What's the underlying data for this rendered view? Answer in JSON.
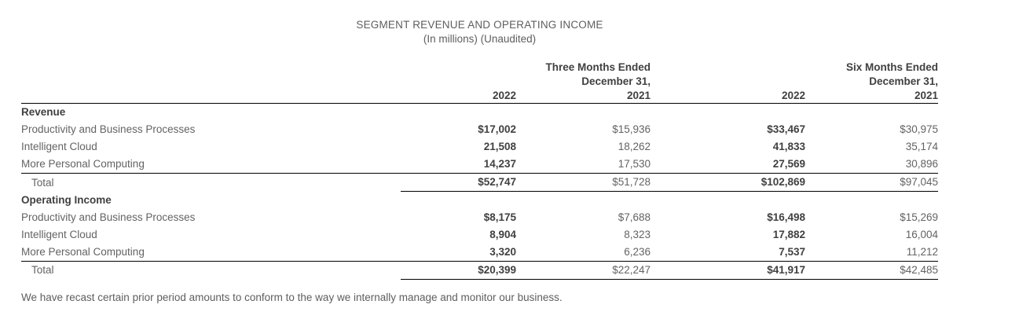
{
  "title": "SEGMENT REVENUE AND OPERATING INCOME",
  "subtitle": "(In millions) (Unaudited)",
  "table": {
    "groups": [
      {
        "line1": "Three Months Ended",
        "line2": "December 31,"
      },
      {
        "line1": "Six Months Ended",
        "line2": "December 31,"
      }
    ],
    "years": [
      "2022",
      "2021",
      "2022",
      "2021"
    ],
    "sections": [
      {
        "heading": "Revenue",
        "rows": [
          {
            "label": "Productivity and Business Processes",
            "values": [
              "$17,002",
              "$15,936",
              "$33,467",
              "$30,975"
            ]
          },
          {
            "label": "Intelligent Cloud",
            "values": [
              "21,508",
              "18,262",
              "41,833",
              "35,174"
            ]
          },
          {
            "label": "More Personal Computing",
            "values": [
              "14,237",
              "17,530",
              "27,569",
              "30,896"
            ]
          }
        ],
        "total": {
          "label": "Total",
          "values": [
            "$52,747",
            "$51,728",
            "$102,869",
            "$97,045"
          ]
        }
      },
      {
        "heading": "Operating Income",
        "rows": [
          {
            "label": "Productivity and Business Processes",
            "values": [
              "$8,175",
              "$7,688",
              "$16,498",
              "$15,269"
            ]
          },
          {
            "label": "Intelligent Cloud",
            "values": [
              "8,904",
              "8,323",
              "17,882",
              "16,004"
            ]
          },
          {
            "label": "More Personal Computing",
            "values": [
              "3,320",
              "6,236",
              "7,537",
              "11,212"
            ]
          }
        ],
        "total": {
          "label": "Total",
          "values": [
            "$20,399",
            "$22,247",
            "$41,917",
            "$42,485"
          ]
        }
      }
    ]
  },
  "footnote": "We have recast certain prior period amounts to conform to the way we internally manage and monitor our business.",
  "colors": {
    "text_regular": "#636363",
    "text_strong": "#404040",
    "rule": "#000000",
    "background": "#ffffff"
  }
}
